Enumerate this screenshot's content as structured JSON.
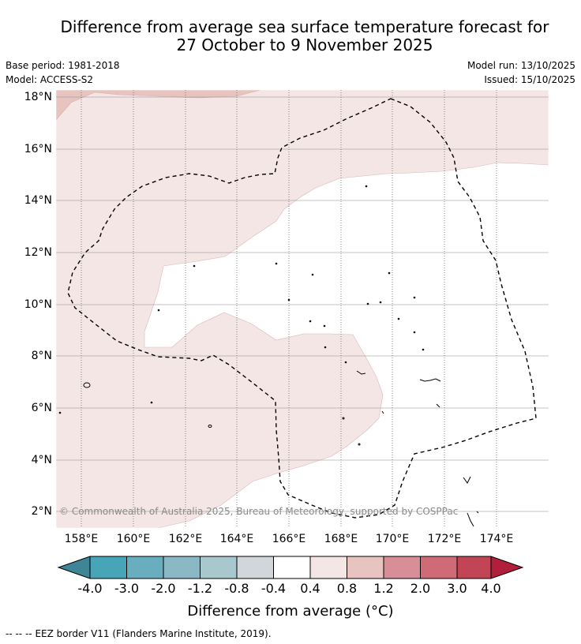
{
  "title": {
    "line1": "Difference from average sea surface temperature forecast for",
    "line2": "27 October to 9 November 2025"
  },
  "meta": {
    "base_period": "Base period: 1981-2018",
    "model": "Model: ACCESS-S2",
    "model_run": "Model run: 13/10/2025",
    "issued": "Issued: 15/10/2025"
  },
  "map": {
    "lat_labels": [
      "18°N",
      "16°N",
      "14°N",
      "12°N",
      "10°N",
      "8°N",
      "6°N",
      "4°N",
      "2°N"
    ],
    "lon_labels": [
      "158°E",
      "160°E",
      "162°E",
      "164°E",
      "166°E",
      "168°E",
      "170°E",
      "172°E",
      "174°E"
    ],
    "region_colors": {
      "band_0_4_to_0_8": "#f5e6e6",
      "band_0_8_to_1_2": "#e8c4c0",
      "ocean_neutral": "#ffffff"
    },
    "copyright": "© Commonwealth of Australia 2025, Bureau of Meteorology, supported by COSPPac"
  },
  "colorbar": {
    "colors": [
      "#3e8595",
      "#48a4b7",
      "#69aebf",
      "#8ab8c5",
      "#a8c8cd",
      "#d0d6d9",
      "#ffffff",
      "#f5e6e6",
      "#e8c4c0",
      "#d88e97",
      "#cf6b77",
      "#c24556",
      "#b11f3d"
    ],
    "tick_labels": [
      "-4.0",
      "-3.0",
      "-2.0",
      "-1.2",
      "-0.8",
      "-0.4",
      "0.4",
      "0.8",
      "1.2",
      "2.0",
      "3.0",
      "4.0"
    ],
    "title": "Difference from average (°C)"
  },
  "footer": {
    "legend_symbol": "--  --  --",
    "legend_text": "EEZ border V11 (Flanders Marine Institute, 2019)."
  }
}
